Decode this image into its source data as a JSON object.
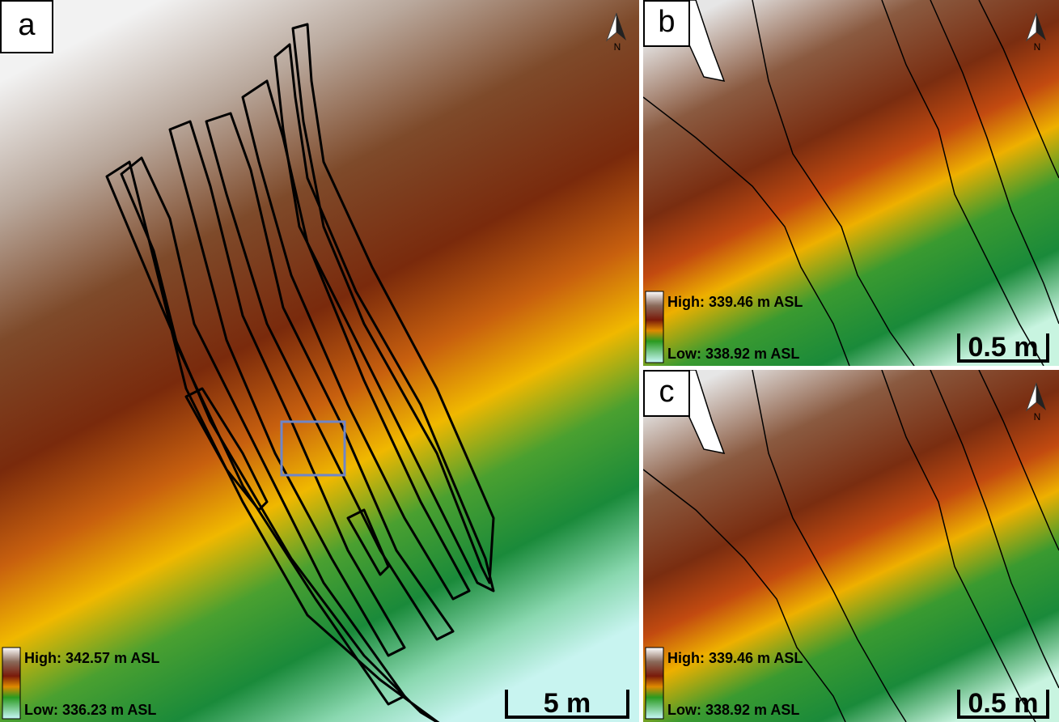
{
  "panels": [
    {
      "label": "a",
      "high": "High: 342.57 m ASL",
      "low": "Low: 336.23 m ASL",
      "scale": "5 m",
      "north": "N"
    },
    {
      "label": "b",
      "high": "High: 339.46 m ASL",
      "low": "Low: 338.92 m ASL",
      "scale": "0.5 m",
      "north": "N"
    },
    {
      "label": "c",
      "high": "High: 339.46 m ASL",
      "low": "Low: 338.92 m ASL",
      "scale": "0.5 m",
      "north": "N"
    }
  ]
}
